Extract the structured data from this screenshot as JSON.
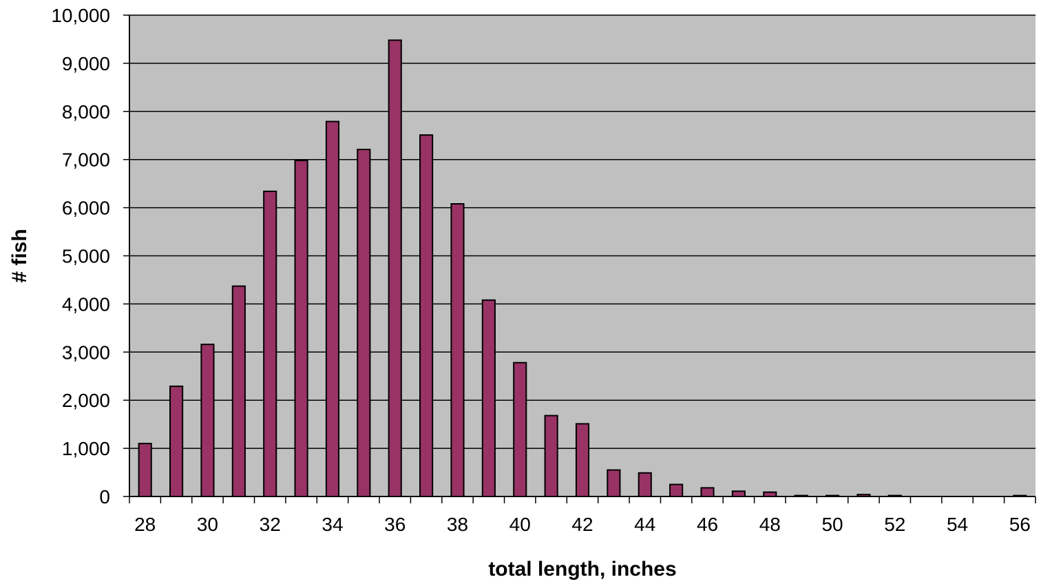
{
  "chart_data": {
    "type": "bar",
    "title": "",
    "xlabel": "total length, inches",
    "ylabel": "# fish",
    "ylim": [
      0,
      10000
    ],
    "y_ticks": [
      0,
      1000,
      2000,
      3000,
      4000,
      5000,
      6000,
      7000,
      8000,
      9000,
      10000
    ],
    "y_tick_labels": [
      "0",
      "1,000",
      "2,000",
      "3,000",
      "4,000",
      "5,000",
      "6,000",
      "7,000",
      "8,000",
      "9,000",
      "10,000"
    ],
    "categories": [
      28,
      29,
      30,
      31,
      32,
      33,
      34,
      35,
      36,
      37,
      38,
      39,
      40,
      41,
      42,
      43,
      44,
      45,
      46,
      47,
      48,
      49,
      50,
      51,
      52,
      53,
      54,
      55,
      56
    ],
    "x_tick_labels": [
      "28",
      "30",
      "32",
      "34",
      "36",
      "38",
      "40",
      "42",
      "44",
      "46",
      "48",
      "50",
      "52",
      "54",
      "56"
    ],
    "values": [
      1100,
      2290,
      3160,
      4370,
      6340,
      6980,
      7790,
      7210,
      9480,
      7510,
      6080,
      4080,
      2780,
      1680,
      1510,
      550,
      490,
      250,
      180,
      110,
      90,
      20,
      20,
      40,
      20,
      0,
      0,
      0,
      20
    ],
    "grid": true,
    "legend": "none",
    "colors": {
      "bar_fill": "#993366",
      "bar_stroke": "#000000",
      "plot_background": "#c0c0c0",
      "gridline": "#000000"
    }
  }
}
